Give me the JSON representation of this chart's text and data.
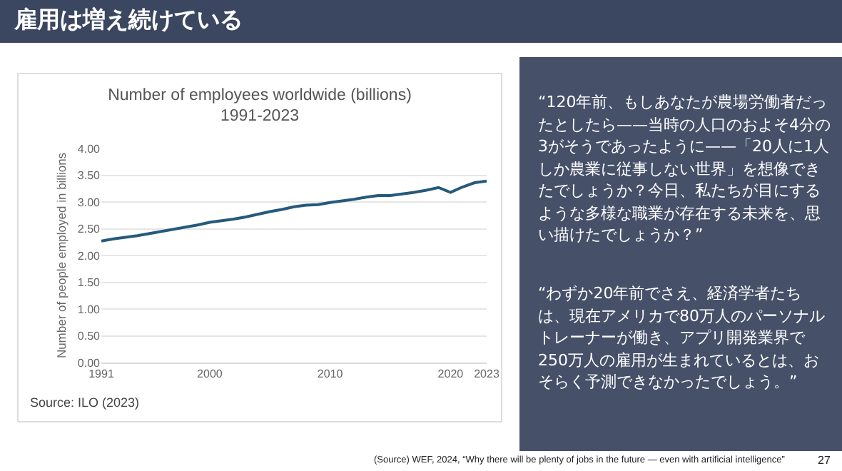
{
  "chart_data": {
    "type": "line",
    "title": "Number of employees worldwide (billions)\n1991-2023",
    "ylabel": "Number of people employed in billions",
    "x": [
      1991,
      1992,
      1993,
      1994,
      1995,
      1996,
      1997,
      1998,
      1999,
      2000,
      2001,
      2002,
      2003,
      2004,
      2005,
      2006,
      2007,
      2008,
      2009,
      2010,
      2011,
      2012,
      2013,
      2014,
      2015,
      2016,
      2017,
      2018,
      2019,
      2020,
      2021,
      2022,
      2023
    ],
    "series": [
      {
        "color": "#255a7c",
        "values": [
          2.27,
          2.31,
          2.34,
          2.37,
          2.41,
          2.45,
          2.49,
          2.53,
          2.57,
          2.62,
          2.65,
          2.68,
          2.72,
          2.77,
          2.82,
          2.86,
          2.91,
          2.94,
          2.95,
          2.99,
          3.02,
          3.05,
          3.09,
          3.12,
          3.12,
          3.15,
          3.18,
          3.22,
          3.27,
          3.18,
          3.28,
          3.36,
          3.39
        ]
      }
    ],
    "xlim": [
      1991,
      2023
    ],
    "xticks": [
      1991,
      2000,
      2010,
      2020,
      2023
    ],
    "ylim": [
      0,
      4
    ],
    "yticks": [
      {
        "value": 0,
        "label": "0.00"
      },
      {
        "value": 0.5,
        "label": "0.50"
      },
      {
        "value": 1,
        "label": "1.00"
      },
      {
        "value": 1.5,
        "label": "1.50"
      },
      {
        "value": 2,
        "label": "2.00"
      },
      {
        "value": 2.5,
        "label": "2.50"
      },
      {
        "value": 3,
        "label": "3.00"
      },
      {
        "value": 3.5,
        "label": "3.50"
      },
      {
        "value": 4,
        "label": "4.00"
      }
    ],
    "grid": "y",
    "marker": "none",
    "line_style": "solid",
    "annotations": [
      "雇用は増え続けている",
      "Source: ILO (2023)",
      "“120年前、もしあなたが農場労働者だったとしたら——当時の人口のおよそ4分の3がそうであったように——「20人に1人しか農業に従事しない世界」を想像できたでしょうか？今日、私たちが目にするような多様な職業が存在する未来を、思い描けたでしょうか？”",
      "“わずか20年前でさえ、経済学者たちは、現在アメリカで80万人のパーソナルトレーナーが働き、アプリ開発業界で250万人の雇用が生まれているとは、おそらく予測できなかったでしょう。”",
      "(Source) WEF, 2024, “Why there will be plenty of jobs in the future — even with artificial intelligence”",
      "27"
    ]
  }
}
